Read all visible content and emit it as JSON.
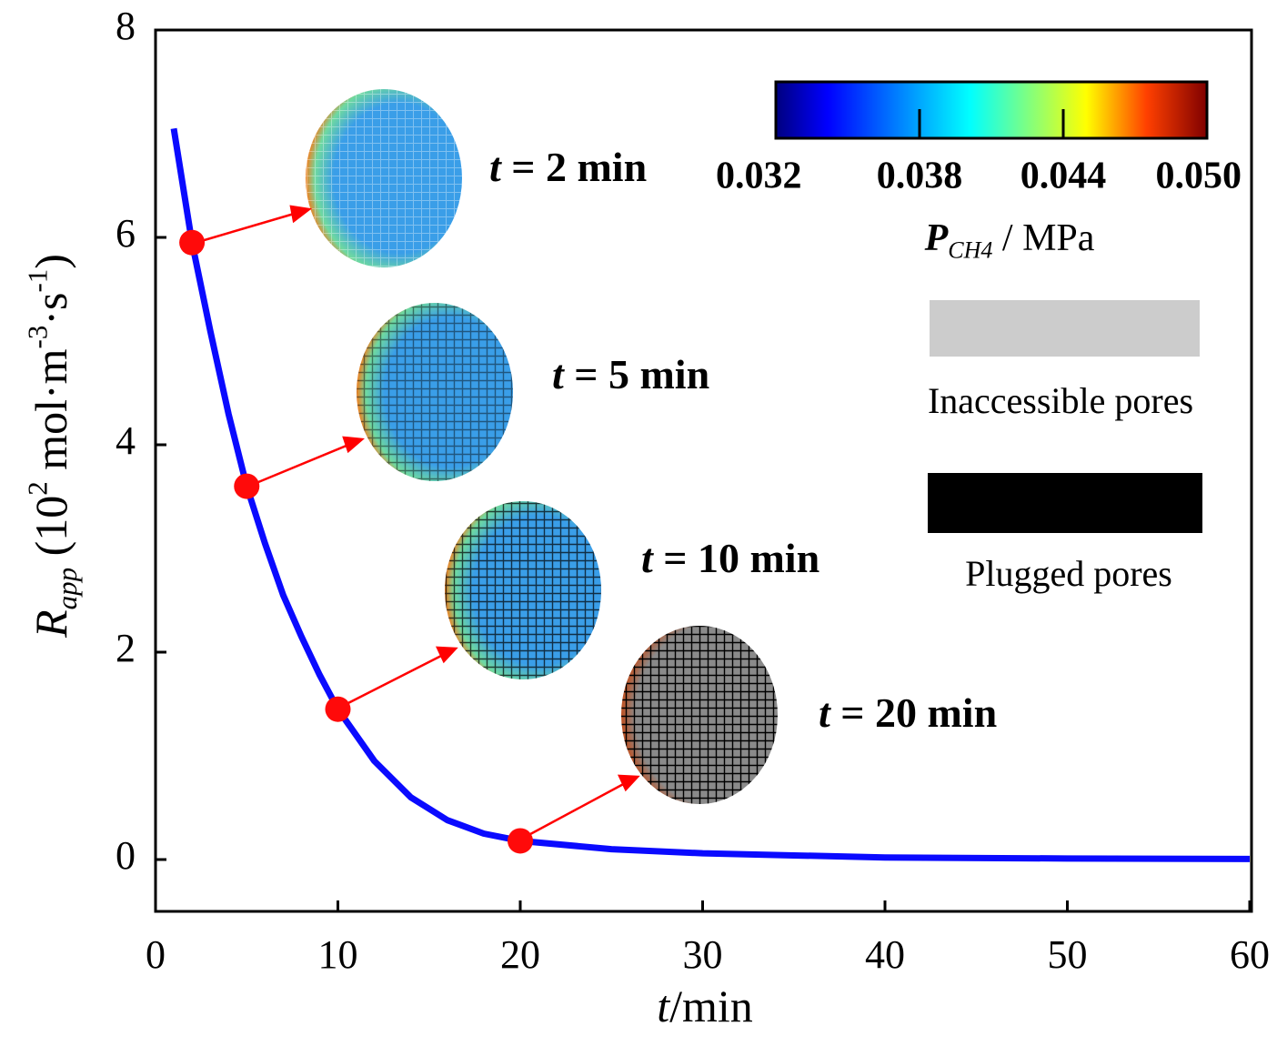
{
  "chart_data": {
    "type": "line",
    "xlabel": [
      {
        "text": "t",
        "style": "italic"
      },
      {
        "text": "/min"
      }
    ],
    "ylabel": [
      {
        "text": "R",
        "style": "italic"
      },
      {
        "text": "app",
        "style": "sub-italic"
      },
      {
        "text": " (10"
      },
      {
        "text": "2",
        "style": "sup"
      },
      {
        "text": " mol·m"
      },
      {
        "text": "-3",
        "style": "sup"
      },
      {
        "text": "·s"
      },
      {
        "text": "-1",
        "style": "sup"
      },
      {
        "text": ")"
      }
    ],
    "xlim": [
      0,
      60
    ],
    "xticks": [
      0,
      10,
      20,
      30,
      40,
      50,
      60
    ],
    "ylim": [
      -0.5,
      8
    ],
    "yticks": [
      0,
      2,
      4,
      6,
      8
    ],
    "series": [
      {
        "name": "curve",
        "color": "#0a0aff",
        "x": [
          1,
          2,
          3,
          4,
          5,
          6,
          7,
          8,
          9,
          10,
          12,
          14,
          16,
          18,
          20,
          25,
          30,
          35,
          40,
          50,
          60
        ],
        "values": [
          7.05,
          5.95,
          5.1,
          4.3,
          3.6,
          3.05,
          2.55,
          2.15,
          1.78,
          1.45,
          0.95,
          0.6,
          0.38,
          0.25,
          0.18,
          0.1,
          0.06,
          0.04,
          0.02,
          0.01,
          0.005
        ]
      },
      {
        "name": "points",
        "color": "#ff0a0a",
        "x": [
          2,
          5,
          10,
          20
        ],
        "values": [
          5.95,
          3.6,
          1.45,
          0.18
        ]
      }
    ],
    "annotations": [
      [
        {
          "text": "t",
          "style": "italic"
        },
        {
          "text": " = 2 min"
        }
      ],
      [
        {
          "text": "t",
          "style": "italic"
        },
        {
          "text": " = 5 min"
        }
      ],
      [
        {
          "text": "t",
          "style": "italic"
        },
        {
          "text": " = 10 min"
        }
      ],
      [
        {
          "text": "t",
          "style": "italic"
        },
        {
          "text": " = 20 min"
        }
      ]
    ],
    "colorbar": {
      "label": [
        {
          "text": "P",
          "style": "bold-italic"
        },
        {
          "text": "CH4",
          "style": "sub-italic"
        },
        {
          "text": " / MPa"
        }
      ],
      "clim": [
        0.032,
        0.05
      ],
      "ticks": [
        0.032,
        0.038,
        0.044,
        {
          "value": 0.05,
          "label": "0.050"
        }
      ]
    },
    "pore_legend": [
      {
        "label": "Inaccessible pores",
        "color": "#cccccc"
      },
      {
        "label": "Plugged pores",
        "color": "#000000"
      }
    ]
  }
}
